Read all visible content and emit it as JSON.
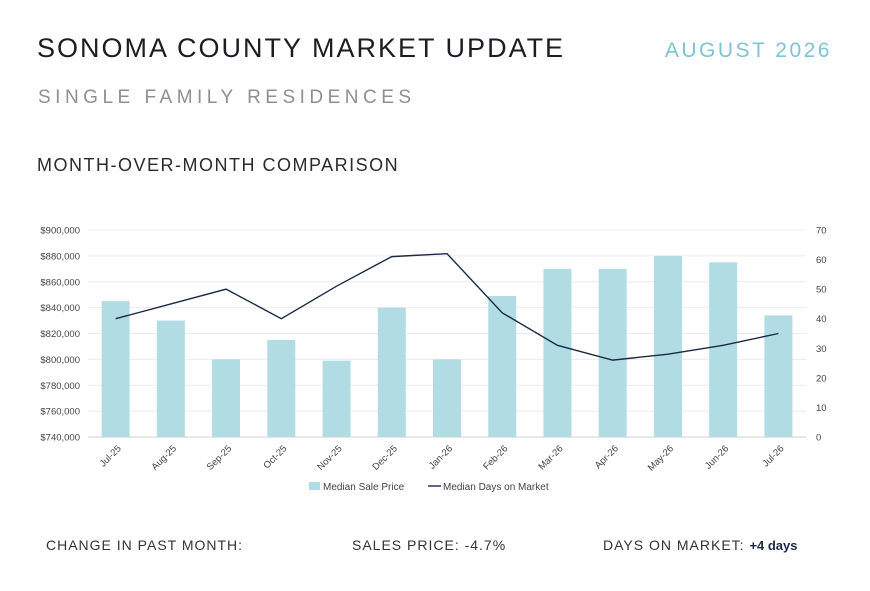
{
  "header": {
    "title": "SONOMA COUNTY MARKET UPDATE",
    "date": "AUGUST 2026",
    "subtitle": "SINGLE FAMILY RESIDENCES",
    "section": "MONTH-OVER-MONTH COMPARISON"
  },
  "footer": {
    "label": "CHANGE IN PAST MONTH:",
    "sales_label": "SALES PRICE:",
    "sales_value": "-4.7%",
    "dom_label": "DAYS ON MARKET:",
    "dom_value": "+4 days"
  },
  "colors": {
    "bar": "#b2dce3",
    "line": "#1a2a44",
    "accent": "#7ec3d6"
  },
  "chart_data": {
    "type": "bar",
    "categories": [
      "Jul-25",
      "Aug-25",
      "Sep-25",
      "Oct-25",
      "Nov-25",
      "Dec-25",
      "Jan-26",
      "Feb-26",
      "Mar-26",
      "Apr-26",
      "May-26",
      "Jun-26",
      "Jul-26"
    ],
    "series": [
      {
        "name": "Median Sale Price",
        "type": "bar",
        "axis": "left",
        "values": [
          845000,
          830000,
          800000,
          815000,
          799000,
          840000,
          800000,
          849000,
          870000,
          870000,
          880000,
          875000,
          834000
        ]
      },
      {
        "name": "Median Days on Market",
        "type": "line",
        "axis": "right",
        "values": [
          40,
          45,
          50,
          40,
          51,
          61,
          62,
          42,
          31,
          26,
          28,
          31,
          35
        ]
      }
    ],
    "y_left": {
      "range": [
        740000,
        900000
      ],
      "ticks": [
        "$740,000",
        "$760,000",
        "$780,000",
        "$800,000",
        "$820,000",
        "$840,000",
        "$860,000",
        "$880,000",
        "$900,000"
      ]
    },
    "y_right": {
      "range": [
        0,
        70
      ],
      "ticks": [
        "0",
        "10",
        "20",
        "30",
        "40",
        "50",
        "60",
        "70"
      ]
    },
    "grid": true,
    "legend": "bottom"
  }
}
